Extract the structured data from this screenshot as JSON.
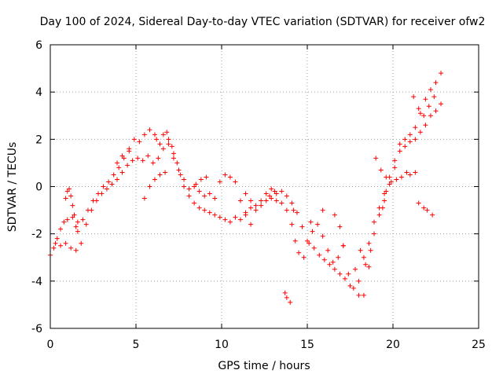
{
  "chart_data": {
    "type": "scatter",
    "title": "Day 100 of 2024, Sidereal Day-to-day VTEC variation (SDTVAR) for receiver ofw2",
    "xlabel": "GPS time / hours",
    "ylabel": "SDTVAR / TECUs",
    "xlim": [
      0,
      25
    ],
    "ylim": [
      -6,
      6
    ],
    "grid": true,
    "marker": "plus",
    "color": "#ff0000",
    "x_ticks": [
      0,
      5,
      10,
      15,
      20,
      25
    ],
    "y_ticks": [
      -6,
      -4,
      -2,
      0,
      2,
      4,
      6
    ],
    "series": [
      {
        "name": "ofw2",
        "points": [
          [
            0.0,
            -2.9
          ],
          [
            0.2,
            -2.6
          ],
          [
            0.4,
            -2.2
          ],
          [
            0.6,
            -1.8
          ],
          [
            0.8,
            -1.5
          ],
          [
            1.0,
            -1.4
          ],
          [
            1.3,
            -1.3
          ],
          [
            1.6,
            -1.5
          ],
          [
            1.9,
            -1.4
          ],
          [
            2.2,
            -1.0
          ],
          [
            2.5,
            -0.6
          ],
          [
            2.8,
            -0.3
          ],
          [
            3.1,
            0.0
          ],
          [
            3.4,
            0.2
          ],
          [
            3.7,
            0.5
          ],
          [
            4.0,
            0.8
          ],
          [
            4.3,
            1.2
          ],
          [
            4.6,
            1.6
          ],
          [
            4.9,
            2.0
          ],
          [
            5.2,
            1.9
          ],
          [
            5.5,
            2.2
          ],
          [
            5.8,
            2.4
          ],
          [
            6.1,
            2.2
          ],
          [
            6.4,
            1.8
          ],
          [
            6.6,
            2.2
          ],
          [
            6.9,
            2.0
          ],
          [
            7.2,
            1.4
          ],
          [
            7.4,
            1.0
          ],
          [
            7.6,
            0.5
          ],
          [
            7.8,
            0.0
          ],
          [
            8.1,
            -0.4
          ],
          [
            8.4,
            -0.7
          ],
          [
            8.7,
            -0.9
          ],
          [
            9.0,
            -1.0
          ],
          [
            9.3,
            -1.1
          ],
          [
            9.6,
            -1.2
          ],
          [
            9.9,
            -1.3
          ],
          [
            10.2,
            -1.4
          ],
          [
            10.5,
            -1.5
          ],
          [
            10.8,
            -1.3
          ],
          [
            11.1,
            -1.4
          ],
          [
            11.4,
            -1.1
          ],
          [
            11.7,
            -0.9
          ],
          [
            12.0,
            -1.0
          ],
          [
            12.3,
            -0.8
          ],
          [
            12.6,
            -0.6
          ],
          [
            12.9,
            -0.5
          ],
          [
            13.2,
            -0.6
          ],
          [
            13.5,
            -0.7
          ],
          [
            13.8,
            -1.0
          ],
          [
            14.1,
            -1.6
          ],
          [
            14.3,
            -2.3
          ],
          [
            14.5,
            -2.8
          ],
          [
            14.8,
            -3.0
          ],
          [
            15.1,
            -2.4
          ],
          [
            15.4,
            -2.6
          ],
          [
            15.7,
            -2.9
          ],
          [
            16.0,
            -3.1
          ],
          [
            16.3,
            -3.3
          ],
          [
            16.6,
            -3.5
          ],
          [
            16.9,
            -3.7
          ],
          [
            17.2,
            -3.9
          ],
          [
            17.5,
            -4.2
          ],
          [
            17.8,
            -3.5
          ],
          [
            18.0,
            -4.6
          ],
          [
            18.3,
            -4.6
          ],
          [
            18.6,
            -3.4
          ],
          [
            18.9,
            -2.0
          ],
          [
            19.2,
            -1.2
          ],
          [
            19.5,
            -0.6
          ],
          [
            19.8,
            0.1
          ],
          [
            20.1,
            0.8
          ],
          [
            20.4,
            1.5
          ],
          [
            20.7,
            2.0
          ],
          [
            21.0,
            2.2
          ],
          [
            21.3,
            2.5
          ],
          [
            21.6,
            3.1
          ],
          [
            21.9,
            3.7
          ],
          [
            22.2,
            4.1
          ],
          [
            22.5,
            4.4
          ],
          [
            22.8,
            4.8
          ],
          [
            0.3,
            -2.4
          ],
          [
            0.6,
            -2.5
          ],
          [
            0.9,
            -2.4
          ],
          [
            1.2,
            -2.6
          ],
          [
            1.5,
            -2.7
          ],
          [
            1.8,
            -2.4
          ],
          [
            2.1,
            -1.6
          ],
          [
            2.4,
            -1.0
          ],
          [
            2.7,
            -0.6
          ],
          [
            3.0,
            -0.3
          ],
          [
            3.3,
            -0.1
          ],
          [
            3.6,
            0.1
          ],
          [
            3.9,
            0.3
          ],
          [
            4.2,
            0.6
          ],
          [
            4.5,
            0.9
          ],
          [
            4.8,
            1.1
          ],
          [
            5.1,
            1.2
          ],
          [
            5.4,
            1.1
          ],
          [
            5.7,
            1.3
          ],
          [
            6.0,
            1.0
          ],
          [
            6.3,
            1.2
          ],
          [
            6.6,
            1.6
          ],
          [
            6.9,
            1.8
          ],
          [
            7.2,
            1.2
          ],
          [
            7.5,
            0.7
          ],
          [
            7.8,
            0.3
          ],
          [
            8.1,
            -0.1
          ],
          [
            8.4,
            0.0
          ],
          [
            8.7,
            -0.2
          ],
          [
            9.0,
            -0.4
          ],
          [
            9.3,
            -0.3
          ],
          [
            9.6,
            -0.5
          ],
          [
            9.9,
            0.2
          ],
          [
            10.2,
            0.5
          ],
          [
            10.5,
            0.4
          ],
          [
            10.8,
            0.2
          ],
          [
            11.1,
            -0.6
          ],
          [
            11.4,
            -1.2
          ],
          [
            11.7,
            -1.6
          ],
          [
            12.0,
            -0.8
          ],
          [
            12.3,
            -0.6
          ],
          [
            12.6,
            -0.3
          ],
          [
            12.9,
            -0.1
          ],
          [
            13.2,
            -0.3
          ],
          [
            13.5,
            -0.2
          ],
          [
            13.8,
            -0.4
          ],
          [
            14.1,
            -0.7
          ],
          [
            14.4,
            -1.1
          ],
          [
            14.7,
            -1.7
          ],
          [
            15.0,
            -2.3
          ],
          [
            15.3,
            -1.9
          ],
          [
            15.6,
            -1.6
          ],
          [
            15.9,
            -2.1
          ],
          [
            16.2,
            -2.7
          ],
          [
            16.5,
            -3.2
          ],
          [
            16.8,
            -3.0
          ],
          [
            17.1,
            -2.5
          ],
          [
            17.4,
            -3.7
          ],
          [
            17.7,
            -4.3
          ],
          [
            18.0,
            -4.0
          ],
          [
            18.3,
            -3.0
          ],
          [
            18.6,
            -2.4
          ],
          [
            18.9,
            -1.5
          ],
          [
            19.2,
            -0.9
          ],
          [
            19.5,
            -0.3
          ],
          [
            19.8,
            0.4
          ],
          [
            20.1,
            1.1
          ],
          [
            20.4,
            1.8
          ],
          [
            20.7,
            1.7
          ],
          [
            21.0,
            1.9
          ],
          [
            21.3,
            2.0
          ],
          [
            21.6,
            2.3
          ],
          [
            21.9,
            2.6
          ],
          [
            22.2,
            3.0
          ],
          [
            22.5,
            3.2
          ],
          [
            22.8,
            3.5
          ],
          [
            0.9,
            -0.5
          ],
          [
            1.0,
            -0.2
          ],
          [
            1.1,
            -0.1
          ],
          [
            1.2,
            -0.4
          ],
          [
            1.3,
            -0.8
          ],
          [
            1.4,
            -1.2
          ],
          [
            1.5,
            -1.7
          ],
          [
            1.6,
            -1.9
          ],
          [
            5.5,
            -0.5
          ],
          [
            5.8,
            0.0
          ],
          [
            6.1,
            0.3
          ],
          [
            6.4,
            0.5
          ],
          [
            6.7,
            0.6
          ],
          [
            13.7,
            -4.5
          ],
          [
            13.8,
            -4.7
          ],
          [
            14.0,
            -4.9
          ],
          [
            19.0,
            1.2
          ],
          [
            19.3,
            0.7
          ],
          [
            19.6,
            0.4
          ],
          [
            19.9,
            0.2
          ],
          [
            20.2,
            0.3
          ],
          [
            20.5,
            0.4
          ],
          [
            20.8,
            0.6
          ],
          [
            21.0,
            0.5
          ],
          [
            21.3,
            0.6
          ],
          [
            21.5,
            -0.7
          ],
          [
            21.8,
            -0.9
          ],
          [
            22.0,
            -1.0
          ],
          [
            22.3,
            -1.2
          ],
          [
            21.2,
            3.8
          ],
          [
            21.5,
            3.3
          ],
          [
            21.8,
            3.0
          ],
          [
            22.1,
            3.4
          ],
          [
            22.4,
            3.8
          ],
          [
            16.6,
            -1.2
          ],
          [
            16.9,
            -1.7
          ],
          [
            17.1,
            -2.5
          ],
          [
            15.9,
            -1.0
          ],
          [
            15.2,
            -1.5
          ],
          [
            14.2,
            -1.0
          ],
          [
            11.4,
            -0.3
          ],
          [
            11.7,
            -0.6
          ],
          [
            12.8,
            -0.4
          ],
          [
            13.1,
            -0.2
          ],
          [
            9.1,
            0.4
          ],
          [
            8.8,
            0.3
          ],
          [
            8.5,
            0.1
          ],
          [
            3.9,
            1.0
          ],
          [
            4.2,
            1.3
          ],
          [
            4.6,
            1.5
          ],
          [
            6.2,
            2.0
          ],
          [
            6.8,
            2.3
          ],
          [
            7.1,
            1.7
          ],
          [
            19.6,
            -0.2
          ],
          [
            19.4,
            -0.9
          ],
          [
            18.1,
            -2.7
          ],
          [
            18.4,
            -3.3
          ],
          [
            18.7,
            -2.7
          ]
        ]
      }
    ]
  }
}
